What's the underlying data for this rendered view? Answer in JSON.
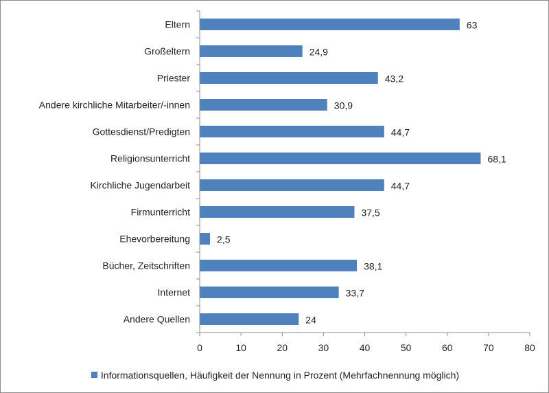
{
  "chart_data": {
    "type": "bar",
    "orientation": "horizontal",
    "categories": [
      "Eltern",
      "Großeltern",
      "Priester",
      "Andere kirchliche Mitarbeiter/-innen",
      "Gottesdienst/Predigten",
      "Religionsunterricht",
      "Kirchliche Jugendarbeit",
      "Firmunterricht",
      "Ehevorbereitung",
      "Bücher, Zeitschriften",
      "Internet",
      "Andere Quellen"
    ],
    "value_labels": [
      "63",
      "24,9",
      "43,2",
      "30,9",
      "44,7",
      "68,1",
      "44,7",
      "37,5",
      "2,5",
      "38,1",
      "33,7",
      "24"
    ],
    "series": [
      {
        "name": "Informationsquellen, Häufigkeit der Nennung in Prozent (Mehrfachnennung möglich)",
        "values": [
          63,
          24.9,
          43.2,
          30.9,
          44.7,
          68.1,
          44.7,
          37.5,
          2.5,
          38.1,
          33.7,
          24
        ],
        "color": "#4f81bd"
      }
    ],
    "xlim": [
      0,
      80
    ],
    "x_ticks": [
      "0",
      "10",
      "20",
      "30",
      "40",
      "50",
      "60",
      "70",
      "80"
    ],
    "grid": false,
    "legend_position": "bottom"
  }
}
